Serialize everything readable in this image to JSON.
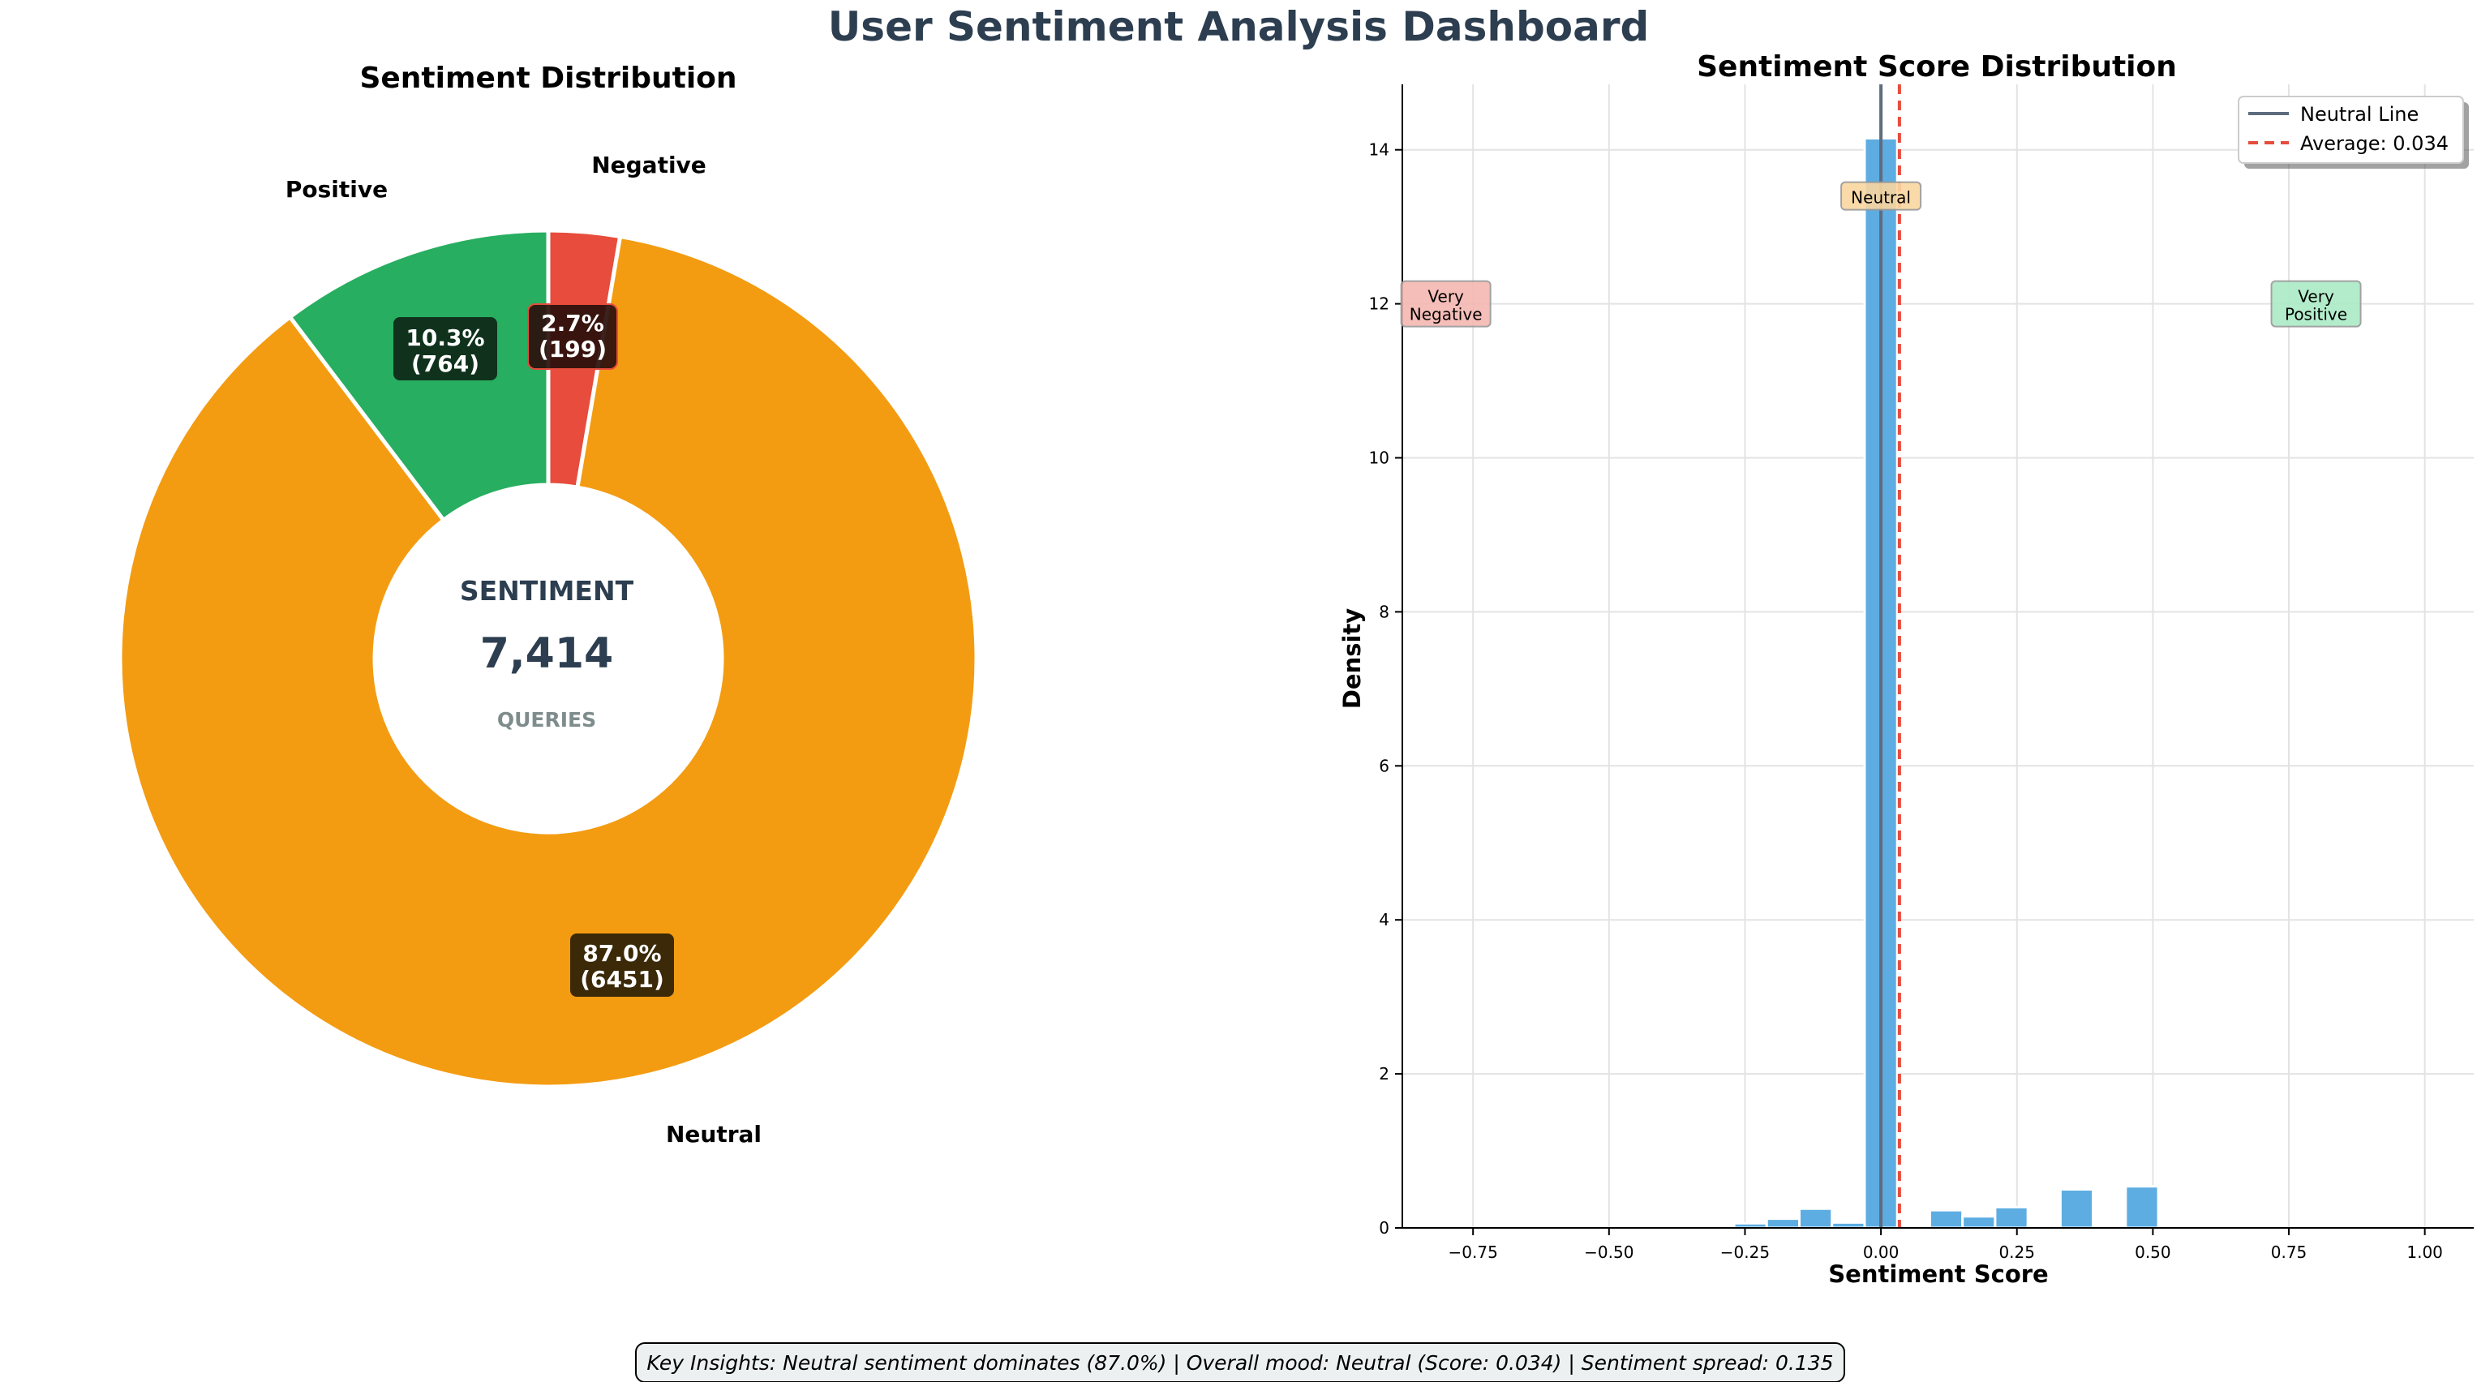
{
  "dashboard": {
    "title": "User Sentiment Analysis Dashboard",
    "insights": "Key Insights: Neutral sentiment dominates (87.0%) | Overall mood: Neutral (Score: 0.034) | Sentiment spread: 0.135"
  },
  "colors": {
    "title": "#2c3e50",
    "positive": "#27ae60",
    "neutral": "#f39c12",
    "negative": "#e74c3c",
    "hist_bar": "#5dade2",
    "neutral_line": "#5d6d7e",
    "average_line": "#e74c3c",
    "muted": "#7f8c8d"
  },
  "chart_data": [
    {
      "type": "pie",
      "donut": true,
      "title": "Sentiment Distribution",
      "categories": [
        "Negative",
        "Neutral",
        "Positive"
      ],
      "values": [
        199,
        6451,
        764
      ],
      "percent_labels": [
        "2.7%",
        "87.0%",
        "10.3%"
      ],
      "count_labels": [
        "(199)",
        "(6451)",
        "(764)"
      ],
      "start_angle_deg": 90,
      "direction": "clockwise",
      "center_text": {
        "top": "SENTIMENT",
        "value": "7,414",
        "bottom": "QUERIES"
      }
    },
    {
      "type": "bar",
      "subtype": "histogram",
      "title": "Sentiment Score Distribution",
      "xlabel": "Sentiment Score",
      "ylabel": "Density",
      "xlim": [
        -0.88,
        1.09
      ],
      "ylim": [
        0,
        14.85
      ],
      "xticks": [
        -0.75,
        -0.5,
        -0.25,
        0.0,
        0.25,
        0.5,
        0.75,
        1.0
      ],
      "xtick_labels": [
        "−0.75",
        "−0.50",
        "−0.25",
        "0.00",
        "0.25",
        "0.50",
        "0.75",
        "1.00"
      ],
      "yticks": [
        0,
        2,
        4,
        6,
        8,
        10,
        12,
        14
      ],
      "grid": true,
      "bin_width": 0.06,
      "bins": [
        {
          "x": -0.3,
          "y": 0.02
        },
        {
          "x": -0.24,
          "y": 0.06
        },
        {
          "x": -0.18,
          "y": 0.12
        },
        {
          "x": -0.12,
          "y": 0.25
        },
        {
          "x": -0.06,
          "y": 0.07
        },
        {
          "x": 0.0,
          "y": 14.15
        },
        {
          "x": 0.06,
          "y": 0.03
        },
        {
          "x": 0.12,
          "y": 0.23
        },
        {
          "x": 0.18,
          "y": 0.15
        },
        {
          "x": 0.24,
          "y": 0.27
        },
        {
          "x": 0.3,
          "y": 0.02
        },
        {
          "x": 0.36,
          "y": 0.5
        },
        {
          "x": 0.48,
          "y": 0.54
        },
        {
          "x": 0.66,
          "y": 0.02
        }
      ],
      "reference_lines": [
        {
          "name": "Neutral Line",
          "x": 0.0
        },
        {
          "name": "Average: 0.034",
          "x": 0.034
        }
      ],
      "annotations": [
        {
          "text": "Very\nNegative",
          "x": -0.8,
          "y": 12.0,
          "color": "#f5b7b1"
        },
        {
          "text": "Neutral",
          "x": 0.0,
          "y": 13.4,
          "color": "#fad7a0"
        },
        {
          "text": "Very\nPositive",
          "x": 0.8,
          "y": 12.0,
          "color": "#abebc6"
        }
      ],
      "legend": {
        "placement": "top-right",
        "entries": [
          "Neutral Line",
          "Average: 0.034"
        ]
      }
    }
  ]
}
